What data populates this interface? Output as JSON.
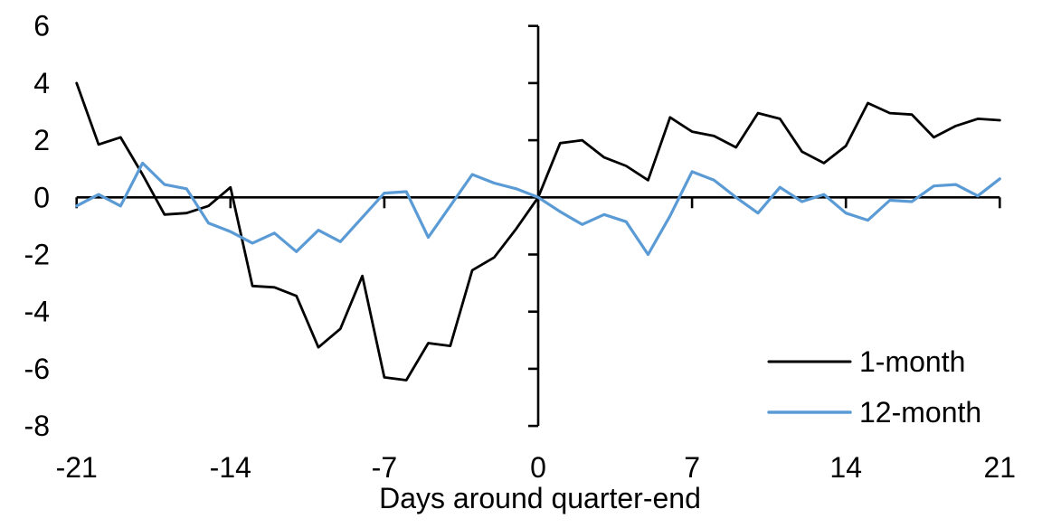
{
  "chart_data": {
    "type": "line",
    "title": "",
    "xlabel": "Days around quarter-end",
    "ylabel": "",
    "xlim": [
      -21,
      21
    ],
    "ylim": [
      -8,
      6
    ],
    "x_ticks": [
      -21,
      -14,
      -7,
      0,
      7,
      14,
      21
    ],
    "y_ticks": [
      6,
      4,
      2,
      0,
      -2,
      -4,
      -6,
      -8
    ],
    "grid": false,
    "legend_position": "lower right",
    "axis_color": "#000000",
    "background_color": "#ffffff",
    "x": [
      -21,
      -20,
      -19,
      -18,
      -17,
      -16,
      -15,
      -14,
      -13,
      -12,
      -11,
      -10,
      -9,
      -8,
      -7,
      -6,
      -5,
      -4,
      -3,
      -2,
      -1,
      0,
      1,
      2,
      3,
      4,
      5,
      6,
      7,
      8,
      9,
      10,
      11,
      12,
      13,
      14,
      15,
      16,
      17,
      18,
      19,
      20,
      21
    ],
    "series": [
      {
        "name": "1-month",
        "color": "#000000",
        "values": [
          4.0,
          1.85,
          2.1,
          0.8,
          -0.6,
          -0.55,
          -0.3,
          0.35,
          -3.1,
          -3.15,
          -3.45,
          -5.25,
          -4.6,
          -2.75,
          -6.3,
          -6.4,
          -5.1,
          -5.2,
          -2.55,
          -2.1,
          -1.1,
          0.0,
          1.9,
          2.0,
          1.4,
          1.1,
          0.6,
          2.8,
          2.3,
          2.15,
          1.75,
          2.95,
          2.75,
          1.6,
          1.2,
          1.8,
          3.3,
          2.95,
          2.9,
          2.1,
          2.5,
          2.75,
          2.7
        ]
      },
      {
        "name": "12-month",
        "color": "#5B9BD5",
        "values": [
          -0.3,
          0.1,
          -0.3,
          1.2,
          0.45,
          0.3,
          -0.9,
          -1.2,
          -1.6,
          -1.25,
          -1.9,
          -1.15,
          -1.55,
          -0.7,
          0.15,
          0.2,
          -1.4,
          -0.3,
          0.8,
          0.5,
          0.3,
          0.0,
          -0.5,
          -0.95,
          -0.6,
          -0.85,
          -2.0,
          -0.65,
          0.9,
          0.6,
          0.0,
          -0.55,
          0.35,
          -0.15,
          0.1,
          -0.55,
          -0.8,
          -0.1,
          -0.15,
          0.4,
          0.45,
          0.05,
          0.65
        ]
      }
    ]
  }
}
